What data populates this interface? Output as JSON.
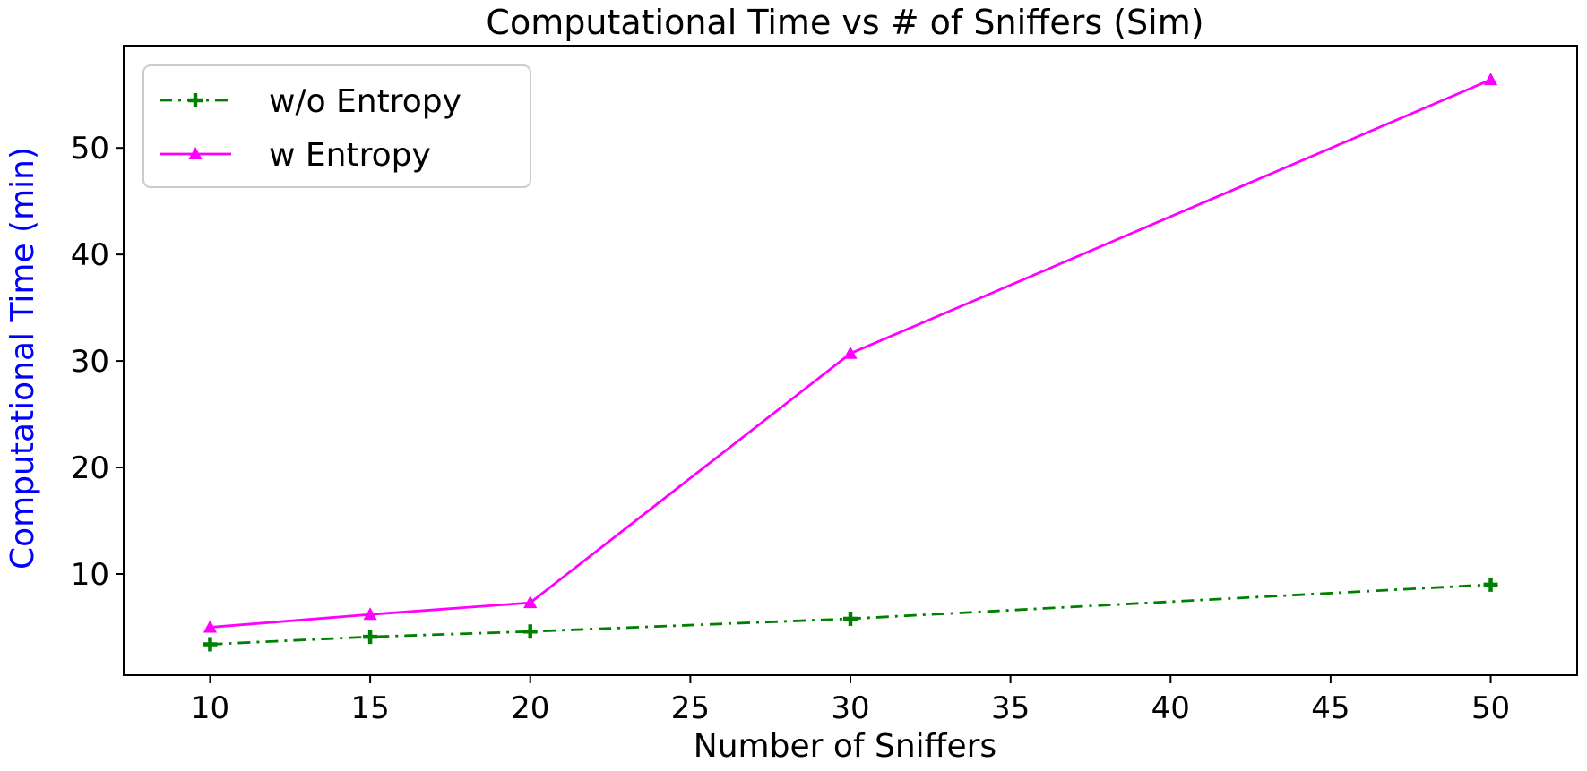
{
  "chart_data": {
    "type": "line",
    "title": "Computational Time vs # of Sniffers (Sim)",
    "xlabel": "Number of Sniffers",
    "ylabel": "Computational Time (min)",
    "ylabel_color": "#0000ff",
    "xlim": [
      7.3,
      52.7
    ],
    "ylim": [
      0.5,
      59.6
    ],
    "xticks": [
      10,
      15,
      20,
      25,
      30,
      35,
      40,
      45,
      50
    ],
    "yticks": [
      10,
      20,
      30,
      40,
      50
    ],
    "grid": false,
    "legend_position": "top-left",
    "series": [
      {
        "name": "w/o Entropy",
        "color": "#008000",
        "line_style": "dash-dot",
        "marker": "plus",
        "x": [
          10,
          15,
          20,
          30,
          50
        ],
        "y": [
          3.4,
          4.1,
          4.6,
          5.8,
          9.0
        ]
      },
      {
        "name": "w Entropy",
        "color": "#ff00ff",
        "line_style": "solid",
        "marker": "triangle",
        "x": [
          10,
          15,
          20,
          30,
          50
        ],
        "y": [
          5.0,
          6.2,
          7.3,
          30.7,
          56.4
        ]
      }
    ]
  }
}
